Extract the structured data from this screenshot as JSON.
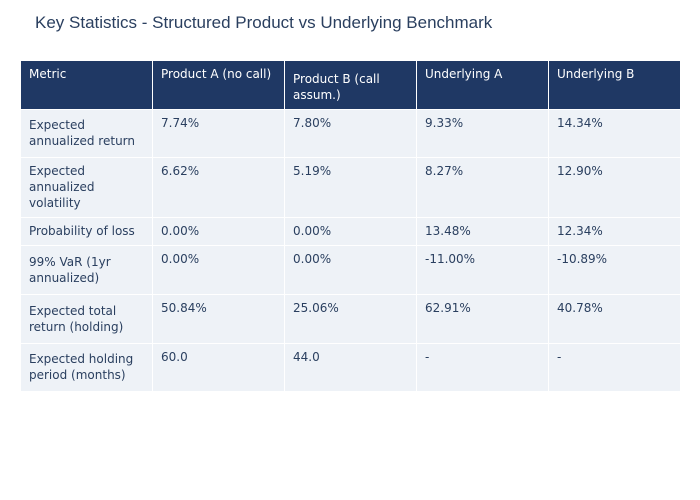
{
  "title": "Key Statistics - Structured Product vs Underlying Benchmark",
  "chart_data": {
    "type": "table",
    "title": "Key Statistics - Structured Product vs Underlying Benchmark",
    "columns": [
      "Metric",
      "Product A (no call)",
      "Product B (call assum.)",
      "Underlying A",
      "Underlying B"
    ],
    "rows": [
      {
        "metric": "Expected annualized return",
        "values": [
          "7.74%",
          "7.80%",
          "9.33%",
          "14.34%"
        ]
      },
      {
        "metric": "Expected annualized volatility",
        "values": [
          "6.62%",
          "5.19%",
          "8.27%",
          "12.90%"
        ]
      },
      {
        "metric": "Probability of loss",
        "values": [
          "0.00%",
          "0.00%",
          "13.48%",
          "12.34%"
        ]
      },
      {
        "metric": "99% VaR (1yr annualized)",
        "values": [
          "0.00%",
          "0.00%",
          "-11.00%",
          "-10.89%"
        ]
      },
      {
        "metric": "Expected total return (holding)",
        "values": [
          "50.84%",
          "25.06%",
          "62.91%",
          "40.78%"
        ]
      },
      {
        "metric": "Expected holding period (months)",
        "values": [
          "60.0",
          "44.0",
          "-",
          "-"
        ]
      }
    ]
  },
  "colors": {
    "header_bg": "#1f3864",
    "cell_bg": "#eef2f7",
    "title_text": "#2a3f5f"
  }
}
